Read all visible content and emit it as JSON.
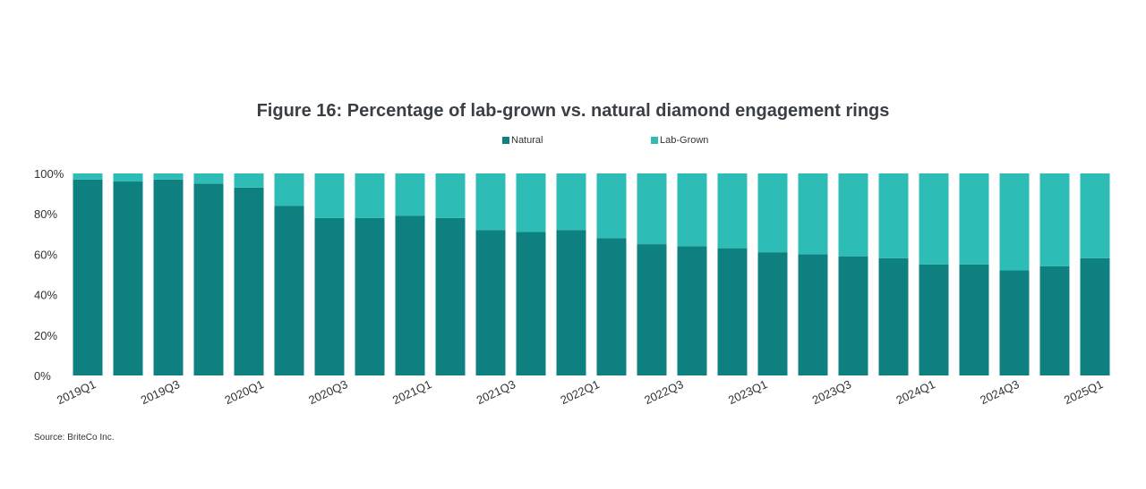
{
  "chart_data": {
    "type": "bar",
    "stacked": true,
    "title": "Figure 16: Percentage of lab-grown vs. natural diamond engagement rings",
    "x_tick_labels": [
      "2019Q1",
      "2019Q3",
      "2020Q1",
      "2020Q3",
      "2021Q1",
      "2021Q3",
      "2022Q1",
      "2022Q3",
      "2023Q1",
      "2023Q3",
      "2024Q1",
      "2024Q3",
      "2025Q1"
    ],
    "series": [
      {
        "name": "Natural",
        "color": "#0f8080",
        "values": [
          97,
          96,
          97,
          95,
          93,
          84,
          78,
          78,
          79,
          78,
          72,
          71,
          72,
          68,
          65,
          64,
          63,
          61,
          60,
          59,
          58,
          55,
          55,
          52,
          54,
          58
        ]
      },
      {
        "name": "Lab-Grown",
        "color": "#2ebdb6",
        "values": [
          3,
          4,
          3,
          5,
          7,
          16,
          22,
          22,
          21,
          22,
          28,
          29,
          28,
          32,
          35,
          36,
          37,
          39,
          40,
          41,
          42,
          45,
          45,
          48,
          46,
          42
        ]
      }
    ],
    "y_ticks": [
      "0%",
      "20%",
      "40%",
      "60%",
      "80%",
      "100%"
    ],
    "ylim": [
      0,
      100
    ],
    "grid": false,
    "legend_position": "top",
    "source": "Source: BriteCo Inc."
  }
}
